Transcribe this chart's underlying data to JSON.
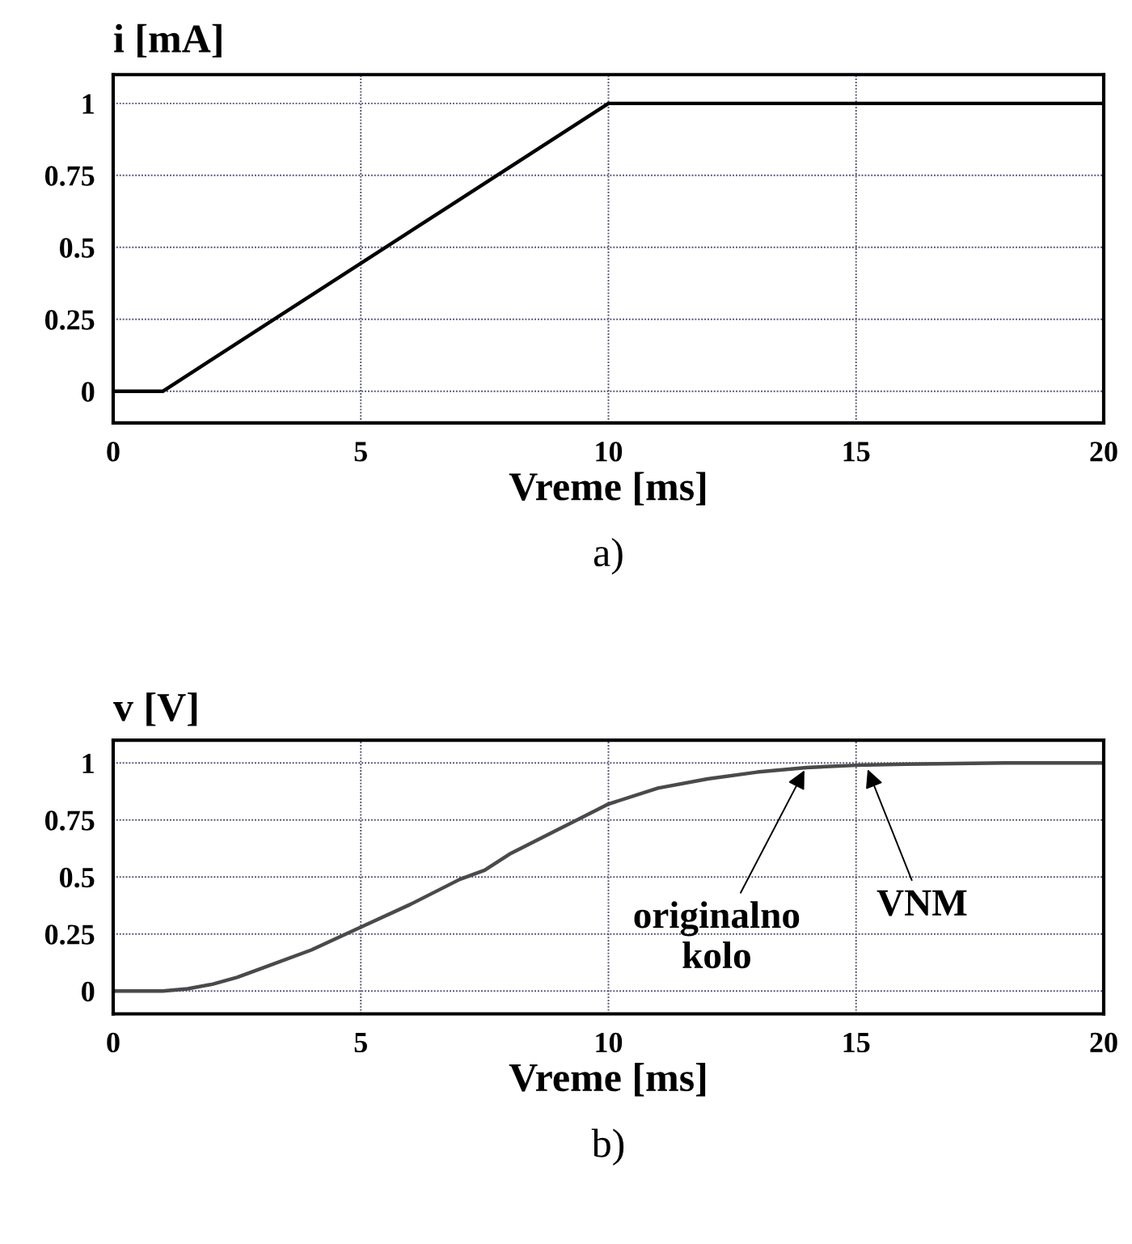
{
  "chart_data": [
    {
      "type": "line",
      "ylabel": "i [mA]",
      "xlabel": "Vreme [ms]",
      "annotations": [
        "a)"
      ],
      "x": [
        0,
        1,
        10,
        20
      ],
      "series": [
        {
          "color": "#000000",
          "values": [
            0,
            0,
            1,
            1
          ]
        }
      ],
      "xlim": [
        0,
        20
      ],
      "xticks": [
        0,
        5,
        10,
        15,
        20
      ],
      "ylim": [
        -0.11,
        1.1
      ],
      "yticks": [
        0,
        0.25,
        0.5,
        0.75,
        1
      ],
      "grid": true
    },
    {
      "type": "line",
      "ylabel": "v [V]",
      "xlabel": "Vreme [ms]",
      "annotations": [
        {
          "text": "originalno\nkolo",
          "x": 14,
          "y": 0.985
        },
        {
          "text": "VNM",
          "x": 15.2,
          "y": 0.99
        },
        "b)"
      ],
      "x": [
        0,
        1,
        1.5,
        2,
        2.5,
        3,
        4,
        5,
        6,
        7,
        7.5,
        8,
        9,
        10,
        11,
        12,
        13,
        14,
        15,
        16,
        18,
        20
      ],
      "series": [
        {
          "color": "#4a4a4a",
          "values": [
            0,
            0,
            0.01,
            0.03,
            0.06,
            0.1,
            0.18,
            0.28,
            0.38,
            0.49,
            0.53,
            0.6,
            0.71,
            0.82,
            0.89,
            0.93,
            0.96,
            0.98,
            0.99,
            0.995,
            1,
            1
          ]
        }
      ],
      "xlim": [
        0,
        20
      ],
      "xticks": [
        0,
        5,
        10,
        15,
        20
      ],
      "ylim": [
        -0.1,
        1.1
      ],
      "yticks": [
        0,
        0.25,
        0.5,
        0.75,
        1
      ],
      "grid": true
    }
  ]
}
